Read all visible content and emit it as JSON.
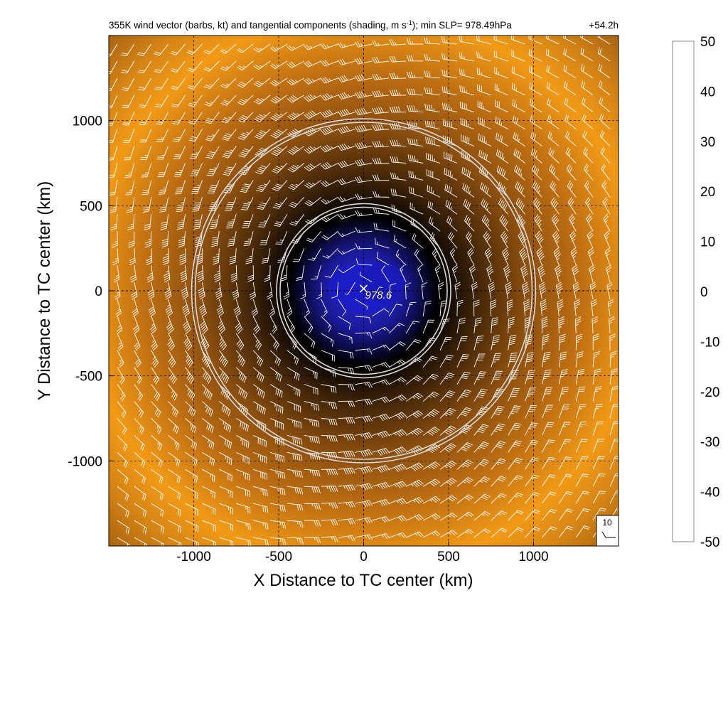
{
  "chart_data": {
    "type": "heatmap",
    "title": "355K wind vector (barbs, kt) and tangential components (shading, m s",
    "title_sup": "-1",
    "title_tail": "); min SLP= 978.49hPa",
    "time_label": "+54.2h",
    "xlabel": "X Distance to TC center (km)",
    "ylabel": "Y Distance to TC center (km)",
    "xlim": [
      -1500,
      1500
    ],
    "ylim": [
      -1500,
      1500
    ],
    "x_ticks": [
      -1000,
      -500,
      0,
      500,
      1000
    ],
    "y_ticks": [
      -1000,
      -500,
      0,
      500,
      1000
    ],
    "grid": true,
    "colorbar": {
      "min": -50,
      "max": 50,
      "ticks": [
        50,
        40,
        30,
        20,
        10,
        0,
        -10,
        -20,
        -30,
        -40,
        -50
      ],
      "stops": [
        {
          "value": -50,
          "color": "#ffffff"
        },
        {
          "value": -40,
          "color": "#ffff66"
        },
        {
          "value": -30,
          "color": "#ffcc00"
        },
        {
          "value": -20,
          "color": "#ff9900"
        },
        {
          "value": -10,
          "color": "#b8640e"
        },
        {
          "value": 0,
          "color": "#000000"
        },
        {
          "value": 10,
          "color": "#0a0a70"
        },
        {
          "value": 20,
          "color": "#1010e0"
        },
        {
          "value": 30,
          "color": "#00bbdd"
        },
        {
          "value": 40,
          "color": "#22eeee"
        },
        {
          "value": 50,
          "color": "#eeffff"
        }
      ]
    },
    "field": {
      "variable": "tangential wind (m s-1)",
      "center_value": 12,
      "anticyclonic_ring_radius_km": 1000,
      "ring_peak_value": -21,
      "outer_value": -12
    },
    "range_rings_km": [
      500,
      1000
    ],
    "center_marker": {
      "x": 0,
      "y": 0,
      "label": "978.6"
    },
    "barb_reference": {
      "label": "10"
    },
    "barb_spacing_km": 100
  }
}
